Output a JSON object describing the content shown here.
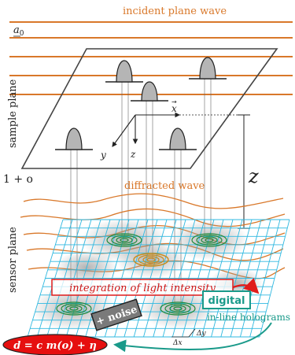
{
  "labels": {
    "incident": "incident plane wave",
    "a0": "a",
    "a0_sub": "0",
    "sample_plane": "sample plane",
    "one_plus_o": "1 + o",
    "diffracted": "diffracted wave",
    "z_big": "z",
    "axis_x": "x",
    "axis_y": "y",
    "axis_z": "z",
    "sensor_plane": "sensor plane",
    "integration": "integration of light intensity",
    "noise": "+ noise",
    "digital": "digital",
    "holograms": "in-line holograms",
    "equation": "d = c m(o) + η",
    "delta_x": "Δx",
    "delta_y": "Δy"
  },
  "colors": {
    "wave": "#d9782a",
    "grid": "#2fb8e0",
    "hologram": "#1f8a3a",
    "hologram_gold": "#c98a18",
    "integration_border": "#e01b1b",
    "integration_text": "#d01515",
    "digital": "#1a9a8a",
    "equation_fill": "#e60f0f",
    "noise_fill": "#7a7a7a",
    "particle_fill": "#b5b5b5"
  }
}
